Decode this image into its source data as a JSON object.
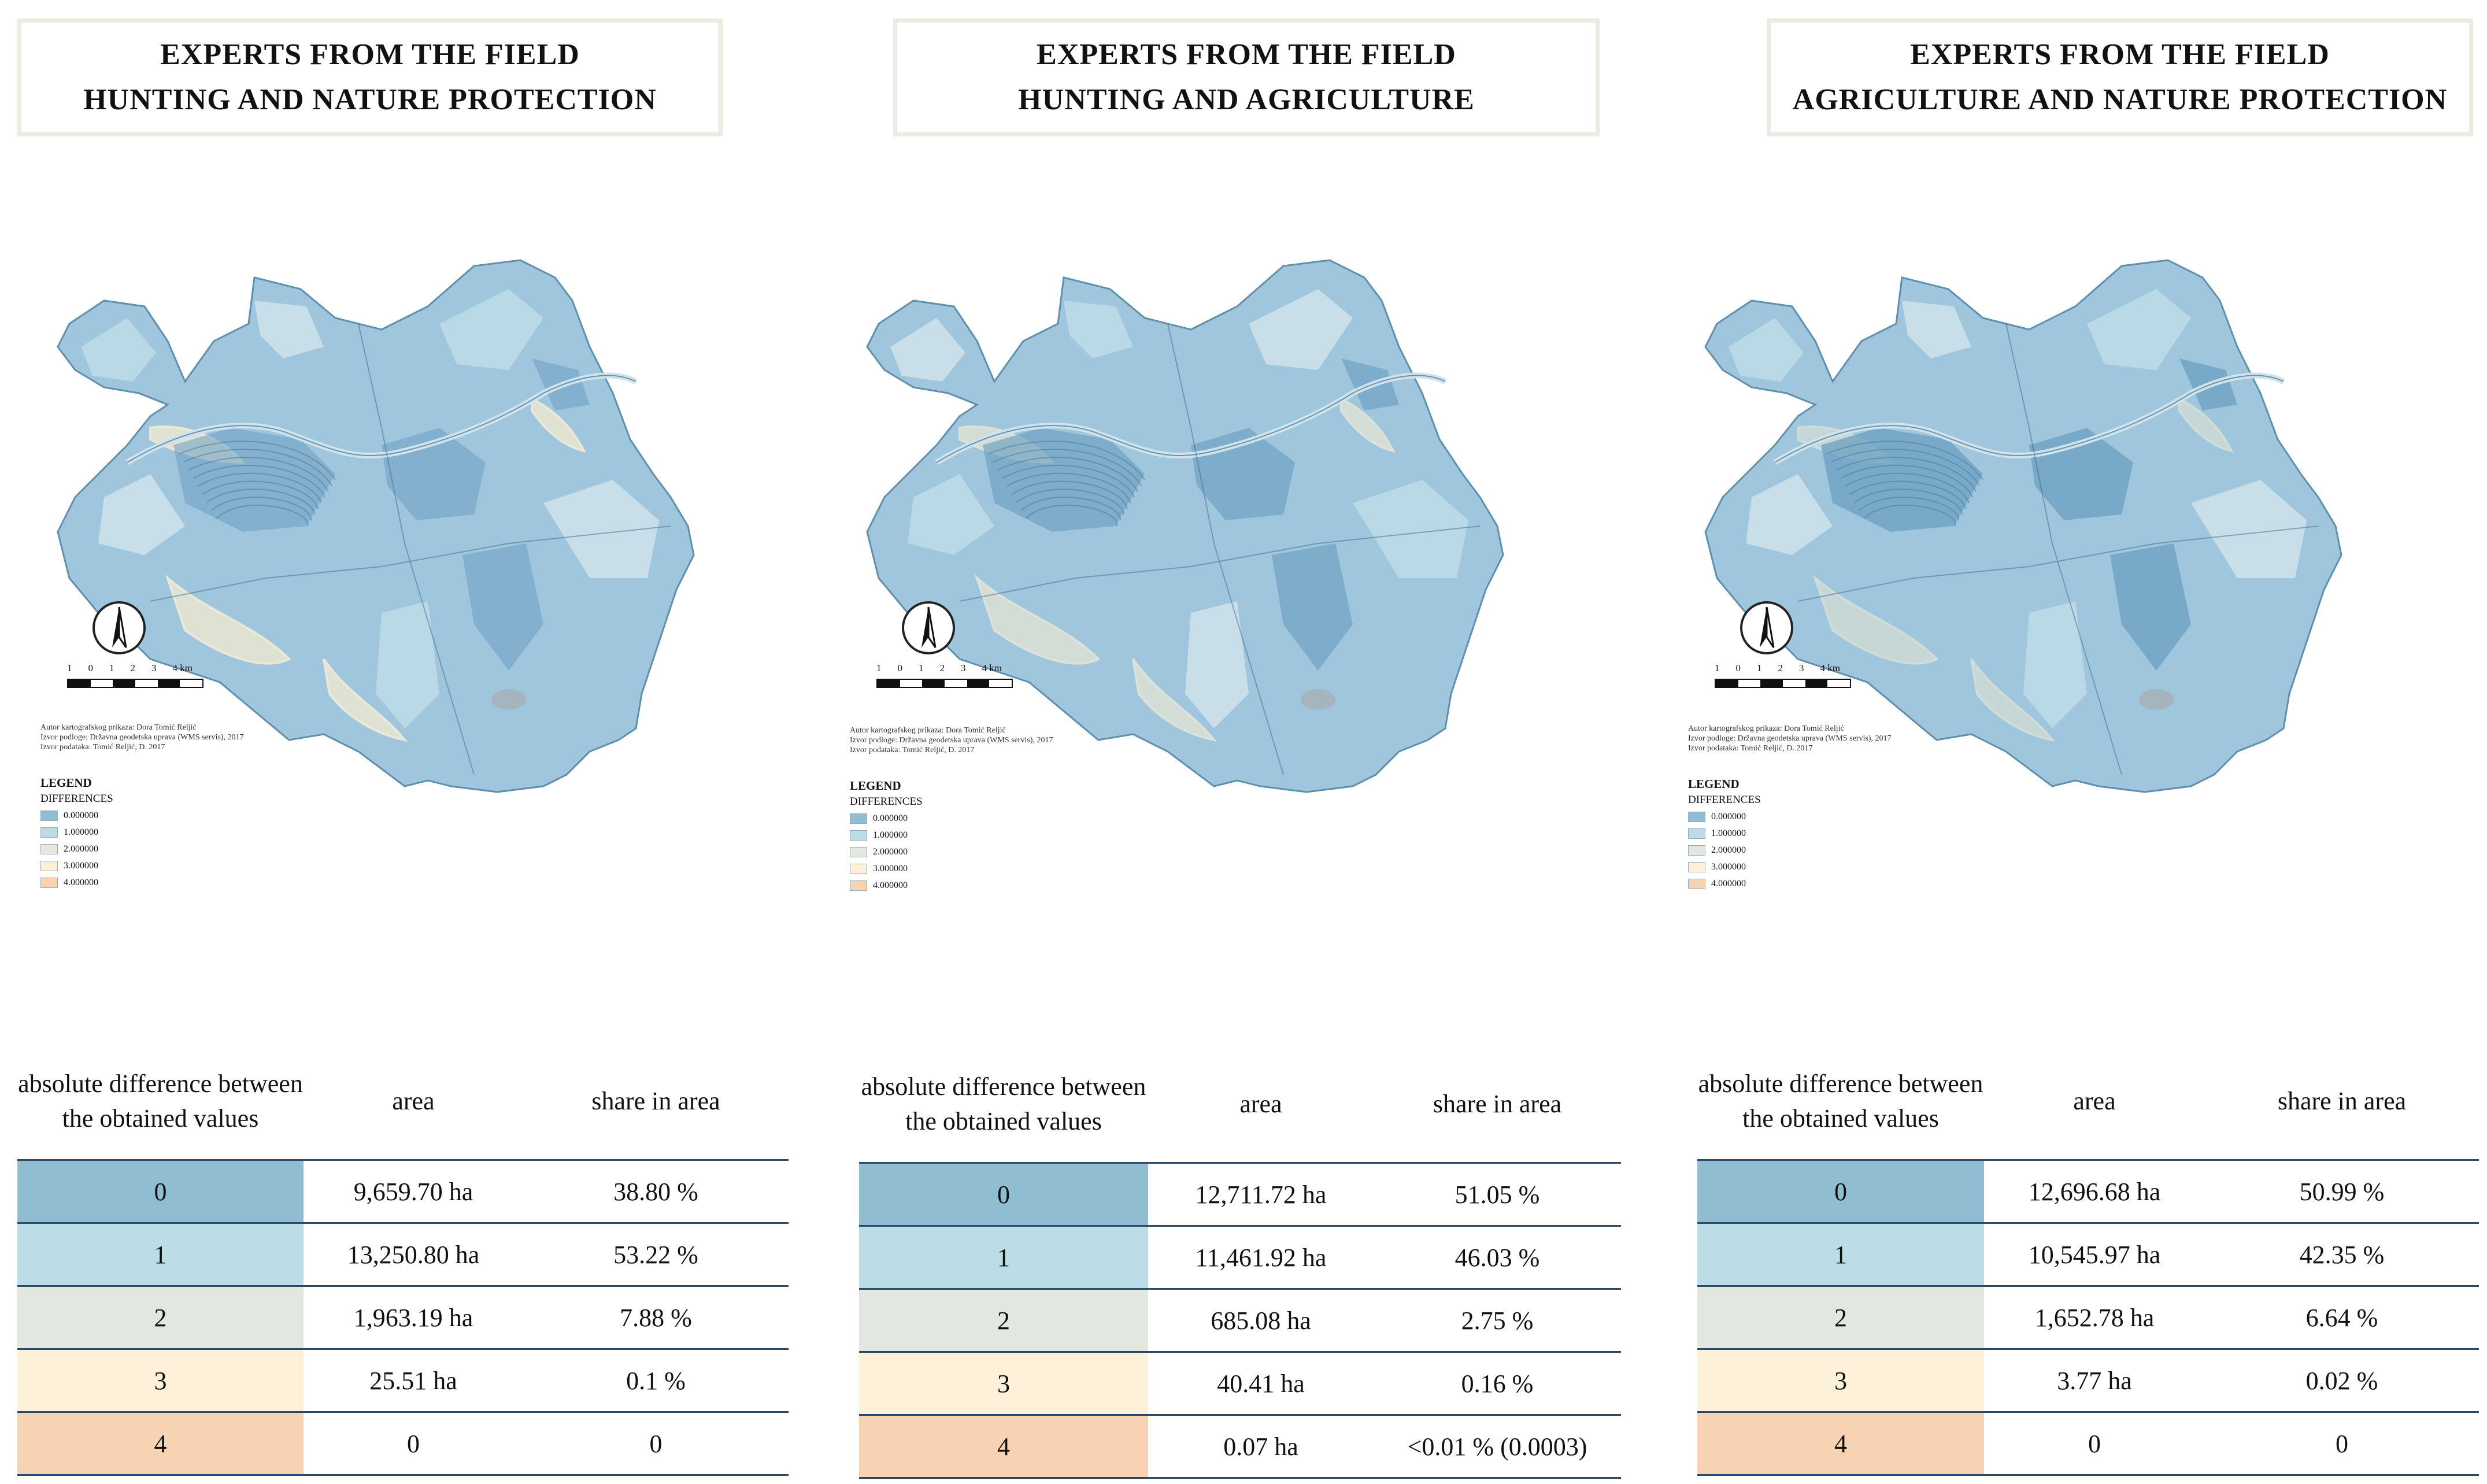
{
  "colors": {
    "diff0": "#91bdd3",
    "diff1": "#bcdce6",
    "diff2": "#e2e8df",
    "diff3": "#fdf2d9",
    "diff4": "#f7d3b3",
    "map_base": "#9fc6dc",
    "map_dark": "#6b9fc2",
    "map_light": "#cfe3ec",
    "map_cream": "#efe9d2"
  },
  "panels": [
    {
      "title_line1": "EXPERTS FROM THE FIELD",
      "title_line2": "HUNTING AND NATURE PROTECTION",
      "table": {
        "headers": [
          "absolute difference between the obtained values",
          "area",
          "share in area"
        ],
        "rows": [
          {
            "value": "0",
            "area": "9,659.70 ha",
            "share": "38.80 %"
          },
          {
            "value": "1",
            "area": "13,250.80 ha",
            "share": "53.22 %"
          },
          {
            "value": "2",
            "area": "1,963.19 ha",
            "share": "7.88 %"
          },
          {
            "value": "3",
            "area": "25.51 ha",
            "share": "0.1 %"
          },
          {
            "value": "4",
            "area": "0",
            "share": "0"
          }
        ]
      }
    },
    {
      "title_line1": "EXPERTS FROM THE FIELD",
      "title_line2": "HUNTING AND AGRICULTURE",
      "table": {
        "headers": [
          "absolute difference between the obtained values",
          "area",
          "share in area"
        ],
        "rows": [
          {
            "value": "0",
            "area": "12,711.72 ha",
            "share": "51.05 %"
          },
          {
            "value": "1",
            "area": "11,461.92 ha",
            "share": "46.03 %"
          },
          {
            "value": "2",
            "area": "685.08 ha",
            "share": "2.75 %"
          },
          {
            "value": "3",
            "area": "40.41 ha",
            "share": "0.16 %"
          },
          {
            "value": "4",
            "area": "0.07 ha",
            "share": "<0.01 % (0.0003)"
          }
        ]
      }
    },
    {
      "title_line1": "EXPERTS FROM THE FIELD",
      "title_line2": "AGRICULTURE AND NATURE PROTECTION",
      "table": {
        "headers": [
          "absolute difference between the obtained values",
          "area",
          "share in area"
        ],
        "rows": [
          {
            "value": "0",
            "area": "12,696.68 ha",
            "share": "50.99 %"
          },
          {
            "value": "1",
            "area": "10,545.97 ha",
            "share": "42.35 %"
          },
          {
            "value": "2",
            "area": "1,652.78 ha",
            "share": "6.64 %"
          },
          {
            "value": "3",
            "area": "3.77 ha",
            "share": "0.02 %"
          },
          {
            "value": "4",
            "area": "0",
            "share": "0"
          }
        ]
      }
    }
  ],
  "map_common": {
    "scale_labels": [
      "1",
      "0",
      "1",
      "2",
      "3",
      "4 km"
    ],
    "credit_line1": "Autor kartografskog prikaza: Dora Tomić Reljić",
    "credit_line2": "Izvor podloge: Državna geodetska uprava (WMS servis), 2017",
    "credit_line3": "Izvor podataka: Tomić Reljić, D. 2017",
    "legend_title": "LEGEND",
    "legend_subtitle": "DIFFERENCES",
    "legend_items": [
      "0.000000",
      "1.000000",
      "2.000000",
      "3.000000",
      "4.000000"
    ]
  }
}
